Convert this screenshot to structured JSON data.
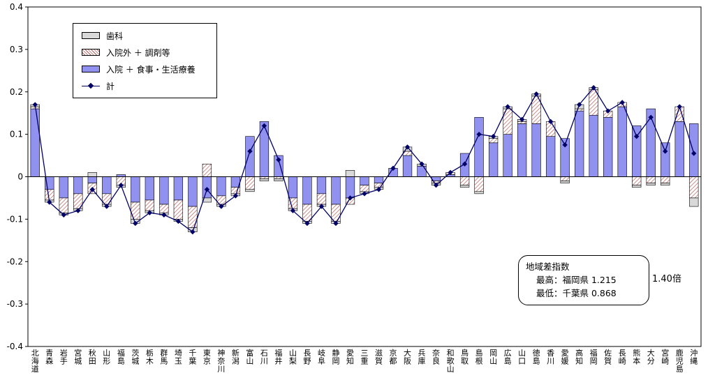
{
  "annotation": {
    "title": "地域差指数",
    "max_line": "最高：福岡県 1.215",
    "min_line": "最低：千葉県 0.868",
    "ratio": "1.40倍"
  },
  "chart_data": {
    "type": "bar",
    "subtype": "stacked-bar-with-line",
    "title": "",
    "xlabel": "",
    "ylabel": "",
    "ylim": [
      -0.4,
      0.4
    ],
    "ytick_step": 0.1,
    "ytick_labels": [
      "0.4",
      "0.3",
      "0.2",
      "0.1",
      "0",
      "-0.1",
      "-0.2",
      "-0.3",
      "-0.4"
    ],
    "legend_position": "top-left-inside",
    "grid": false,
    "categories": [
      "北海道",
      "青森",
      "岩手",
      "宮城",
      "秋田",
      "山形",
      "福島",
      "茨城",
      "栃木",
      "群馬",
      "埼玉",
      "千葉",
      "東京",
      "神奈川",
      "新潟",
      "富山",
      "石川",
      "福井",
      "山梨",
      "長野",
      "岐阜",
      "静岡",
      "愛知",
      "三重",
      "滋賀",
      "京都",
      "大阪",
      "兵庫",
      "奈良",
      "和歌山",
      "鳥取",
      "島根",
      "岡山",
      "広島",
      "山口",
      "徳島",
      "香川",
      "愛媛",
      "高知",
      "福岡",
      "佐賀",
      "長崎",
      "熊本",
      "大分",
      "宮崎",
      "鹿児島",
      "沖縄"
    ],
    "series": [
      {
        "name": "歯科",
        "key": "dental",
        "type": "bar",
        "values": [
          0.005,
          -0.005,
          -0.005,
          -0.005,
          0.01,
          -0.005,
          -0.005,
          -0.01,
          -0.005,
          -0.005,
          -0.005,
          -0.01,
          -0.01,
          -0.005,
          -0.005,
          -0.005,
          -0.005,
          -0.005,
          -0.005,
          -0.005,
          -0.005,
          -0.005,
          0.015,
          -0.005,
          -0.005,
          0,
          0.01,
          0.005,
          -0.005,
          0,
          -0.005,
          -0.005,
          0.005,
          0.005,
          0.005,
          0.005,
          0,
          -0.005,
          0.01,
          0.005,
          0,
          0,
          -0.005,
          -0.005,
          -0.005,
          0,
          -0.02
        ]
      },
      {
        "name": "入院外 ＋ 調剤等",
        "key": "outpatient",
        "type": "bar",
        "values": [
          0.005,
          -0.025,
          -0.035,
          -0.035,
          -0.025,
          -0.025,
          -0.02,
          -0.04,
          -0.025,
          -0.02,
          -0.045,
          -0.05,
          0.03,
          -0.02,
          -0.015,
          -0.03,
          -0.005,
          -0.005,
          -0.025,
          -0.04,
          -0.025,
          -0.04,
          -0.015,
          -0.015,
          -0.01,
          0,
          0.01,
          0,
          -0.005,
          0.005,
          -0.02,
          -0.035,
          0.01,
          0.06,
          0.005,
          0.065,
          0.035,
          -0.01,
          0.005,
          0.06,
          0.015,
          0.01,
          -0.02,
          -0.015,
          -0.015,
          0.035,
          -0.05
        ]
      },
      {
        "name": "入院 ＋ 食事・生活療養",
        "key": "inpatient",
        "type": "bar",
        "values": [
          0.16,
          -0.03,
          -0.05,
          -0.04,
          -0.015,
          -0.04,
          0.005,
          -0.06,
          -0.055,
          -0.065,
          -0.055,
          -0.07,
          -0.05,
          -0.045,
          -0.025,
          0.095,
          0.13,
          0.05,
          -0.05,
          -0.065,
          -0.04,
          -0.065,
          -0.05,
          -0.02,
          -0.015,
          0.02,
          0.05,
          0.025,
          -0.01,
          0.005,
          0.055,
          0.14,
          0.08,
          0.1,
          0.125,
          0.125,
          0.095,
          0.09,
          0.155,
          0.145,
          0.14,
          0.165,
          0.12,
          0.16,
          0.08,
          0.13,
          0.125
        ]
      },
      {
        "name": "計",
        "key": "total",
        "type": "line",
        "values": [
          0.17,
          -0.06,
          -0.09,
          -0.08,
          -0.03,
          -0.07,
          -0.02,
          -0.11,
          -0.085,
          -0.09,
          -0.105,
          -0.13,
          -0.03,
          -0.07,
          -0.045,
          0.06,
          0.12,
          0.04,
          -0.08,
          -0.11,
          -0.07,
          -0.11,
          -0.05,
          -0.04,
          -0.03,
          0.02,
          0.07,
          0.03,
          -0.02,
          0.01,
          0.03,
          0.1,
          0.095,
          0.165,
          0.135,
          0.195,
          0.13,
          0.075,
          0.17,
          0.21,
          0.155,
          0.175,
          0.095,
          0.14,
          0.06,
          0.165,
          0.055
        ]
      }
    ],
    "colors": {
      "dental": "#d9d9d9",
      "outpatient_stripe": "#b85c5c",
      "inpatient": "#9191f0",
      "line": "#000066",
      "axis": "#000000"
    }
  }
}
